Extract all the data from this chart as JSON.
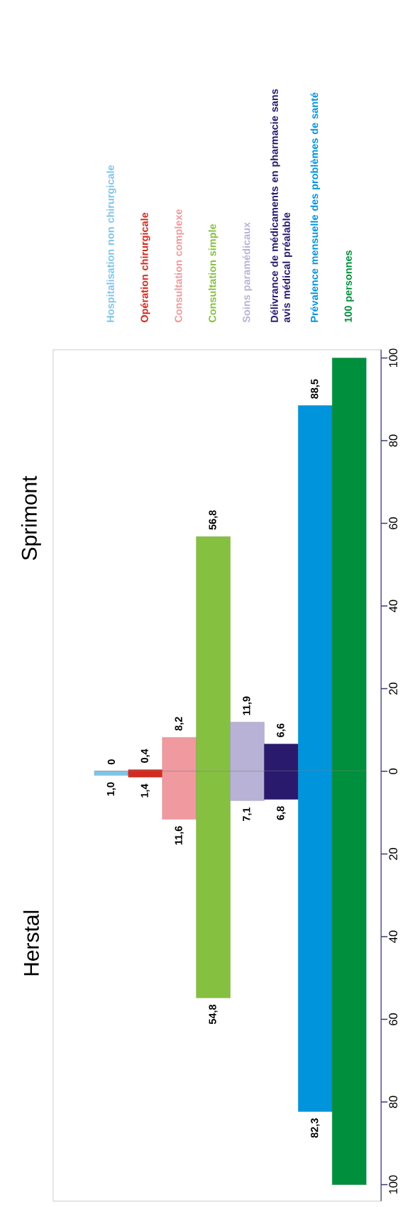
{
  "chart_data": [
    {
      "type": "bar",
      "categories": [
        "Hospitalisation non chirurgicale",
        "Opération chirurgicale",
        "Consultation complexe",
        "Consultation simple",
        "Soins paramédicaux",
        "Délivrance de médicaments en pharmacie sans avis médical préalable",
        "Prévalence mensuelle des problèmes de santé",
        "100 personnes"
      ],
      "series": [
        {
          "name": "Sprimont",
          "colors": [
            "#7fc4e8",
            "#d42a20",
            "#f0999e",
            "#86c040",
            "#b8b2d6",
            "#2a1a6e",
            "#0094dc",
            "#008f3c"
          ],
          "values": [
            0,
            0.4,
            8.2,
            56.8,
            11.9,
            6.6,
            88.5,
            100
          ],
          "value_labels": [
            "0",
            "0,4",
            "8,2",
            "56,8",
            "11,9",
            "6,6",
            "88,5",
            null
          ]
        }
      ],
      "ylim": [
        0,
        102
      ],
      "yticks": [
        0,
        20,
        40,
        60,
        80,
        100
      ],
      "ref_lines": [
        {
          "axis": "y",
          "value": 0,
          "color": "#999999"
        }
      ],
      "legend": "top"
    },
    {
      "type": "bar",
      "categories": [
        null,
        null,
        null,
        null,
        null,
        null,
        null,
        null
      ],
      "series": [
        {
          "name": "Herstal",
          "colors": [
            "#7fc4e8",
            "#d42a20",
            "#f0999e",
            "#86c040",
            "#b8b2d6",
            "#2a1a6e",
            "#0094dc",
            "#008f3c"
          ],
          "values": [
            1.0,
            1.4,
            11.6,
            54.8,
            7.1,
            6.8,
            82.3,
            100
          ],
          "value_labels": [
            "1,0",
            "1,4",
            "11,6",
            "54,8",
            "7,1",
            "6,8",
            "82,3",
            null
          ]
        }
      ],
      "ylim": [
        104,
        0
      ],
      "yticks": [
        20,
        40,
        60,
        80,
        100
      ]
    }
  ]
}
